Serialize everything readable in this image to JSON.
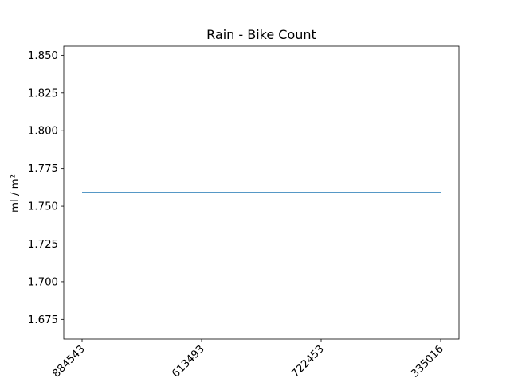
{
  "chart_data": {
    "type": "line",
    "title": "Rain - Bike Count",
    "xlabel": "",
    "ylabel": "ml / m²",
    "categories": [
      "884543",
      "613493",
      "722453",
      "335016"
    ],
    "series": [
      {
        "values": [
          1.759,
          1.759,
          1.759,
          1.759
        ],
        "color": "#1f77b4"
      }
    ],
    "ylim": [
      1.662,
      1.856
    ],
    "yticks": [
      1.675,
      1.7,
      1.725,
      1.75,
      1.775,
      1.8,
      1.825,
      1.85
    ],
    "ytick_labels": [
      "1.675",
      "1.700",
      "1.725",
      "1.750",
      "1.775",
      "1.800",
      "1.825",
      "1.850"
    ],
    "grid": false,
    "legend": "none"
  }
}
